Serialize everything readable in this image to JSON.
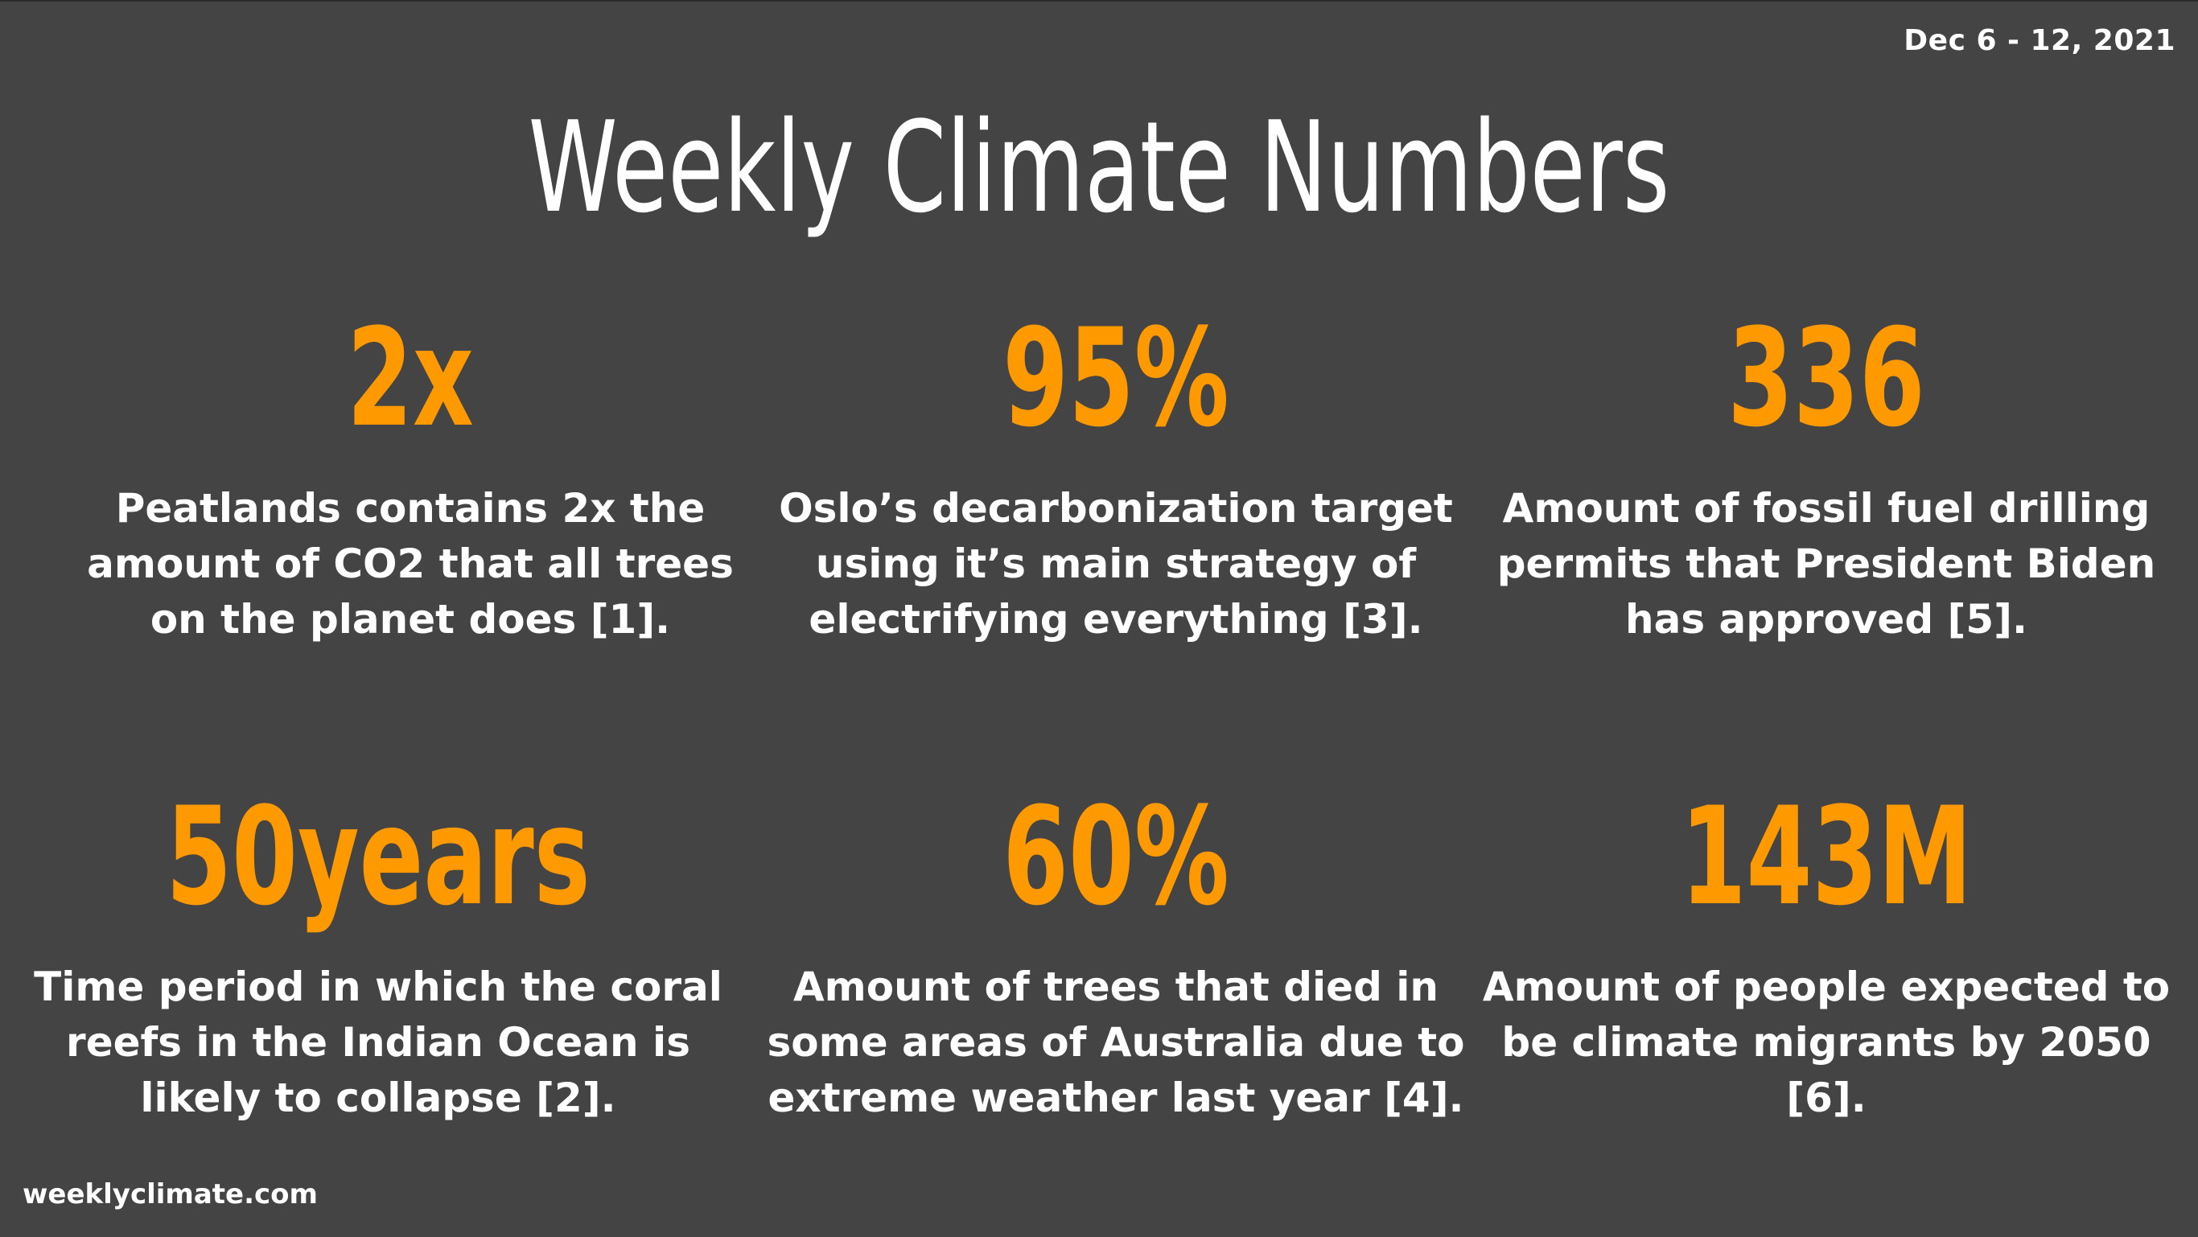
{
  "header": {
    "date_range": "Dec 6 - 12, 2021",
    "title": "Weekly Climate Numbers"
  },
  "stats": [
    {
      "value": "2x",
      "description": "Peatlands contains 2x the amount of CO2 that all trees on the planet does [1]."
    },
    {
      "value": "95%",
      "description": "Oslo’s decarbonization target using it’s main strategy of electrifying everything [3]."
    },
    {
      "value": "336",
      "description": "Amount of fossil fuel drilling permits that President Biden has approved [5]."
    },
    {
      "value": "50years",
      "description": "Time period in which the coral reefs in the Indian Ocean is likely to collapse [2]."
    },
    {
      "value": "60%",
      "description": "Amount of trees that died in some areas of Australia due to extreme weather last year [4]."
    },
    {
      "value": "143M",
      "description": "Amount of people expected to be climate migrants by 2050 [6]."
    }
  ],
  "footer": {
    "site": "weeklyclimate.com"
  },
  "colors": {
    "background": "#444444",
    "accent": "#ff9900",
    "text": "#ffffff"
  }
}
